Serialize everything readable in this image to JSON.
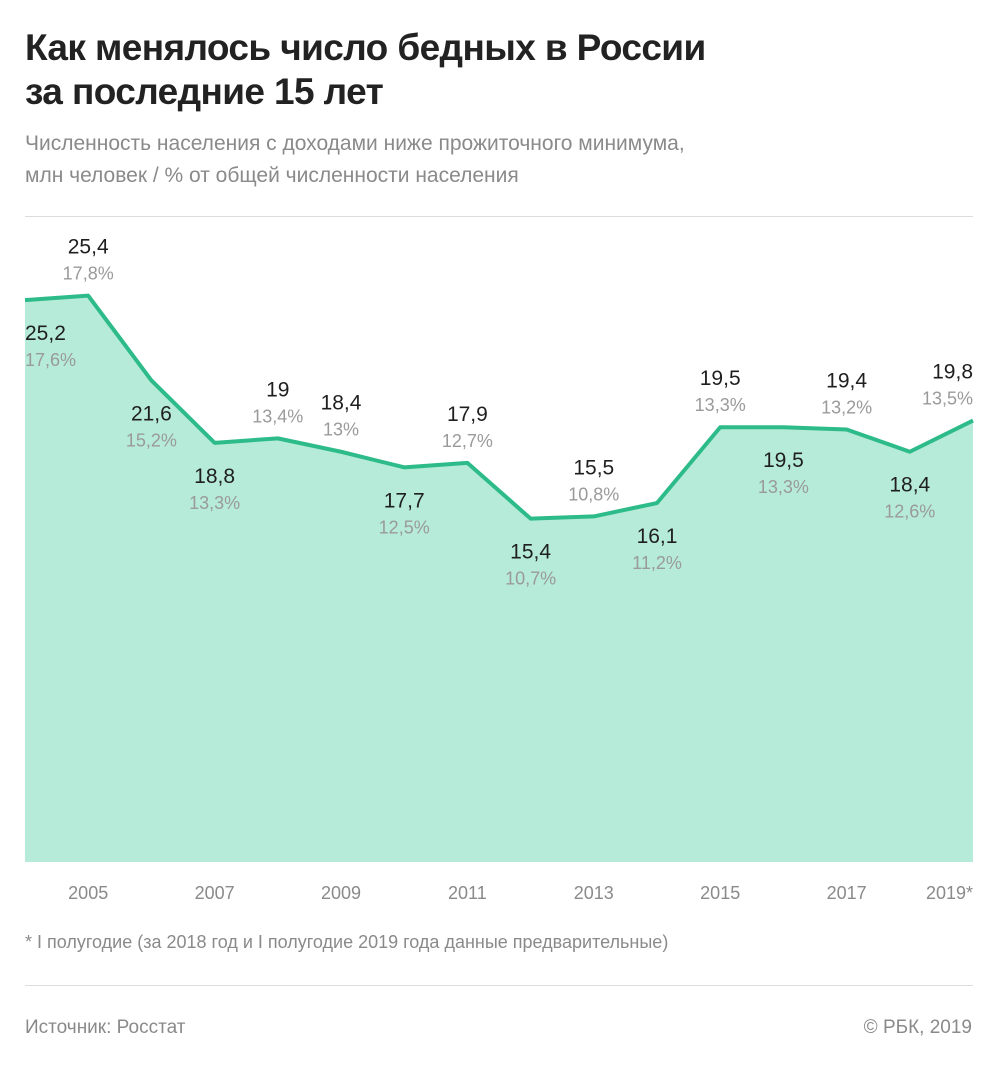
{
  "title_line1": "Как менялось число бедных в России",
  "title_line2": "за последние 15 лет",
  "subtitle_line1": "Численность населения с доходами ниже прожиточного минимума,",
  "subtitle_line2": "млн человек / % от общей численности населения",
  "footnote": "* I полугодие (за 2018 год и I полугодие 2019 года данные предварительные)",
  "source": "Источник: Росстат",
  "copyright": "© РБК, 2019",
  "colors": {
    "line": "#2dbb8a",
    "fill": "#b6ebd9"
  },
  "chart_data": {
    "type": "area",
    "title": "Как менялось число бедных в России за последние 15 лет",
    "subtitle": "Численность населения с доходами ниже прожиточного минимума, млн человек / % от общей численности населения",
    "x": [
      "2004",
      "2005",
      "2006",
      "2007",
      "2008",
      "2009",
      "2010",
      "2011",
      "2012",
      "2013",
      "2014",
      "2015",
      "2016",
      "2017",
      "2018",
      "2019*"
    ],
    "x_tick_labels": [
      "2005",
      "2007",
      "2009",
      "2011",
      "2013",
      "2015",
      "2017",
      "2019*"
    ],
    "values": [
      25.2,
      25.4,
      21.6,
      18.8,
      19,
      18.4,
      17.7,
      17.9,
      15.4,
      15.5,
      16.1,
      19.5,
      19.5,
      19.4,
      18.4,
      19.8
    ],
    "value_labels": [
      "25,2",
      "25,4",
      "21,6",
      "18,8",
      "19",
      "18,4",
      "17,7",
      "17,9",
      "15,4",
      "15,5",
      "16,1",
      "19,5",
      "19,5",
      "19,4",
      "18,4",
      "19,8"
    ],
    "percent_labels": [
      "17,6%",
      "17,8%",
      "15,2%",
      "13,3%",
      "13,4%",
      "13%",
      "12,5%",
      "12,7%",
      "10,7%",
      "10,8%",
      "11,2%",
      "13,3%",
      "13,3%",
      "13,2%",
      "12,6%",
      "13,5%"
    ],
    "label_position": [
      "below",
      "above",
      "below",
      "below",
      "above",
      "above",
      "below",
      "above",
      "below",
      "above",
      "below",
      "above",
      "below",
      "above",
      "below",
      "above"
    ],
    "ylim": [
      0,
      27
    ],
    "grid": false
  }
}
